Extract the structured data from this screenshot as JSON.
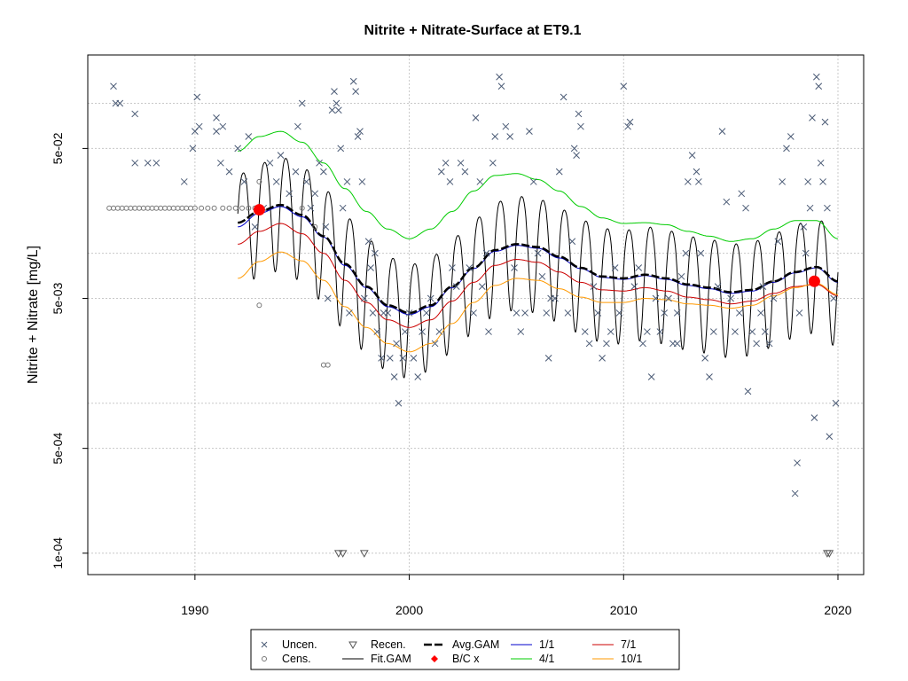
{
  "chart_data": {
    "type": "scatter",
    "title": "Nitrite + Nitrate-Surface at ET9.1",
    "xlabel": "",
    "ylabel": "Nitrite + Nitrate [mg/L]",
    "xlim": [
      1985,
      2021.2
    ],
    "ylim": [
      7.2e-05,
      0.21
    ],
    "y_scale": "log",
    "grid": true,
    "x_ticks": [
      1990,
      2000,
      2010,
      2020
    ],
    "x_tick_labels": [
      "1990",
      "2000",
      "2010",
      "2020"
    ],
    "y_ticks": [
      0.0001,
      0.0005,
      0.005,
      0.05
    ],
    "y_tick_labels": [
      "1e-04",
      "5e-04",
      "5e-03",
      "5e-02"
    ],
    "y_minor_grid": [
      0.001,
      0.01,
      0.1
    ],
    "legend_position": "bottom-outside",
    "legend": [
      {
        "label": "Uncen.",
        "symbol": "x",
        "color": "#4a5a75"
      },
      {
        "label": "Cens.",
        "symbol": "circle",
        "color": "#777777"
      },
      {
        "label": "Recen.",
        "symbol": "triangle-down",
        "color": "#555555"
      },
      {
        "label": "Fit.GAM",
        "symbol": "line",
        "color": "#000000"
      },
      {
        "label": "Avg.GAM",
        "symbol": "dashed-line",
        "color": "#000000"
      },
      {
        "label": "B/C x",
        "symbol": "diamond",
        "color": "#ff0000"
      },
      {
        "label": "1/1",
        "symbol": "line",
        "color": "#0000cc"
      },
      {
        "label": "4/1",
        "symbol": "line",
        "color": "#00cc00"
      },
      {
        "label": "7/1",
        "symbol": "line",
        "color": "#cc0000"
      },
      {
        "label": "10/1",
        "symbol": "line",
        "color": "#ff9900"
      }
    ],
    "uncensored": [
      [
        1986.2,
        0.13
      ],
      [
        1986.3,
        0.1
      ],
      [
        1986.5,
        0.1
      ],
      [
        1987.2,
        0.085
      ],
      [
        1987.2,
        0.04
      ],
      [
        1987.8,
        0.04
      ],
      [
        1988.2,
        0.04
      ],
      [
        1989.5,
        0.03
      ],
      [
        1989.9,
        0.05
      ],
      [
        1990.1,
        0.11
      ],
      [
        1990.0,
        0.065
      ],
      [
        1990.2,
        0.07
      ],
      [
        1991.0,
        0.065
      ],
      [
        1991.0,
        0.08
      ],
      [
        1991.2,
        0.04
      ],
      [
        1991.3,
        0.07
      ],
      [
        1991.6,
        0.035
      ],
      [
        1992.0,
        0.05
      ],
      [
        1992.3,
        0.03
      ],
      [
        1992.5,
        0.06
      ],
      [
        1992.8,
        0.015
      ],
      [
        1993.2,
        0.02
      ],
      [
        1993.5,
        0.04
      ],
      [
        1993.8,
        0.03
      ],
      [
        1994.0,
        0.045
      ],
      [
        1994.4,
        0.025
      ],
      [
        1994.7,
        0.035
      ],
      [
        1994.8,
        0.07
      ],
      [
        1995.0,
        0.1
      ],
      [
        1995.2,
        0.03
      ],
      [
        1995.4,
        0.02
      ],
      [
        1995.6,
        0.025
      ],
      [
        1995.8,
        0.04
      ],
      [
        1996.0,
        0.035
      ],
      [
        1996.1,
        0.015
      ],
      [
        1996.2,
        0.005
      ],
      [
        1996.4,
        0.09
      ],
      [
        1996.5,
        0.12
      ],
      [
        1996.6,
        0.1
      ],
      [
        1996.7,
        0.09
      ],
      [
        1996.8,
        0.05
      ],
      [
        1996.9,
        0.02
      ],
      [
        1997.1,
        0.03
      ],
      [
        1997.2,
        0.004
      ],
      [
        1997.4,
        0.14
      ],
      [
        1997.5,
        0.12
      ],
      [
        1997.6,
        0.06
      ],
      [
        1997.7,
        0.065
      ],
      [
        1997.8,
        0.03
      ],
      [
        1997.9,
        0.005
      ],
      [
        1998.1,
        0.012
      ],
      [
        1998.2,
        0.008
      ],
      [
        1998.3,
        0.004
      ],
      [
        1998.4,
        0.01
      ],
      [
        1998.5,
        0.003
      ],
      [
        1998.7,
        0.002
      ],
      [
        1998.8,
        0.004
      ],
      [
        1999.0,
        0.004
      ],
      [
        1999.1,
        0.002
      ],
      [
        1999.3,
        0.0015
      ],
      [
        1999.4,
        0.0025
      ],
      [
        1999.5,
        0.001
      ],
      [
        1999.7,
        0.002
      ],
      [
        1999.8,
        0.003
      ],
      [
        2000.0,
        0.004
      ],
      [
        2000.2,
        0.002
      ],
      [
        2000.4,
        0.0015
      ],
      [
        2000.6,
        0.003
      ],
      [
        2000.8,
        0.004
      ],
      [
        2001.0,
        0.005
      ],
      [
        2001.2,
        0.0025
      ],
      [
        2001.4,
        0.003
      ],
      [
        2001.5,
        0.035
      ],
      [
        2001.7,
        0.04
      ],
      [
        2001.9,
        0.03
      ],
      [
        2002.0,
        0.008
      ],
      [
        2002.2,
        0.006
      ],
      [
        2002.4,
        0.04
      ],
      [
        2002.6,
        0.035
      ],
      [
        2002.8,
        0.008
      ],
      [
        2003.0,
        0.004
      ],
      [
        2003.1,
        0.08
      ],
      [
        2003.3,
        0.03
      ],
      [
        2003.4,
        0.006
      ],
      [
        2003.6,
        0.01
      ],
      [
        2003.9,
        0.04
      ],
      [
        2004.0,
        0.06
      ],
      [
        2004.2,
        0.15
      ],
      [
        2004.3,
        0.13
      ],
      [
        2004.5,
        0.07
      ],
      [
        2004.7,
        0.06
      ],
      [
        2004.9,
        0.008
      ],
      [
        2005.0,
        0.004
      ],
      [
        2005.2,
        0.003
      ],
      [
        2005.4,
        0.004
      ],
      [
        2005.6,
        0.065
      ],
      [
        2005.8,
        0.03
      ],
      [
        2006.0,
        0.01
      ],
      [
        2006.2,
        0.007
      ],
      [
        2006.4,
        0.004
      ],
      [
        2006.6,
        0.005
      ],
      [
        2006.8,
        0.005
      ],
      [
        2007.0,
        0.035
      ],
      [
        2007.2,
        0.11
      ],
      [
        2007.4,
        0.004
      ],
      [
        2007.6,
        0.012
      ],
      [
        2007.7,
        0.05
      ],
      [
        2007.8,
        0.045
      ],
      [
        2007.9,
        0.085
      ],
      [
        2008.0,
        0.07
      ],
      [
        2008.2,
        0.003
      ],
      [
        2008.4,
        0.0025
      ],
      [
        2008.6,
        0.006
      ],
      [
        2008.8,
        0.004
      ],
      [
        2009.0,
        0.002
      ],
      [
        2009.2,
        0.0025
      ],
      [
        2009.4,
        0.003
      ],
      [
        2009.6,
        0.008
      ],
      [
        2009.8,
        0.004
      ],
      [
        2010.0,
        0.13
      ],
      [
        2010.2,
        0.07
      ],
      [
        2010.3,
        0.075
      ],
      [
        2010.5,
        0.006
      ],
      [
        2010.7,
        0.008
      ],
      [
        2010.9,
        0.0025
      ],
      [
        2011.1,
        0.003
      ],
      [
        2011.3,
        0.0015
      ],
      [
        2011.5,
        0.005
      ],
      [
        2011.7,
        0.003
      ],
      [
        2011.9,
        0.004
      ],
      [
        2012.1,
        0.005
      ],
      [
        2012.3,
        0.0025
      ],
      [
        2012.5,
        0.004
      ],
      [
        2012.7,
        0.007
      ],
      [
        2012.9,
        0.01
      ],
      [
        2013.0,
        0.03
      ],
      [
        2013.2,
        0.045
      ],
      [
        2013.4,
        0.035
      ],
      [
        2013.5,
        0.03
      ],
      [
        2013.6,
        0.01
      ],
      [
        2013.8,
        0.002
      ],
      [
        2014.0,
        0.0015
      ],
      [
        2014.2,
        0.003
      ],
      [
        2014.4,
        0.006
      ],
      [
        2014.6,
        0.065
      ],
      [
        2014.8,
        0.022
      ],
      [
        2015.0,
        0.005
      ],
      [
        2015.2,
        0.003
      ],
      [
        2015.4,
        0.004
      ],
      [
        2015.5,
        0.025
      ],
      [
        2015.7,
        0.02
      ],
      [
        2015.8,
        0.0012
      ],
      [
        2016.0,
        0.003
      ],
      [
        2016.2,
        0.0025
      ],
      [
        2016.4,
        0.004
      ],
      [
        2016.6,
        0.003
      ],
      [
        2016.8,
        0.0025
      ],
      [
        2017.0,
        0.005
      ],
      [
        2017.2,
        0.012
      ],
      [
        2017.4,
        0.03
      ],
      [
        2017.6,
        0.05
      ],
      [
        2017.8,
        0.06
      ],
      [
        2018.0,
        0.00025
      ],
      [
        2018.2,
        0.004
      ],
      [
        2018.4,
        0.015
      ],
      [
        2018.6,
        0.03
      ],
      [
        2018.7,
        0.02
      ],
      [
        2018.8,
        0.08
      ],
      [
        2019.0,
        0.15
      ],
      [
        2019.1,
        0.13
      ],
      [
        2019.2,
        0.04
      ],
      [
        2019.3,
        0.03
      ],
      [
        2019.4,
        0.075
      ],
      [
        2019.5,
        0.02
      ],
      [
        2019.6,
        0.0006
      ],
      [
        2019.8,
        0.005
      ],
      [
        2019.9,
        0.001
      ],
      [
        2018.9,
        0.0008
      ],
      [
        2018.1,
        0.0004
      ],
      [
        2018.5,
        0.01
      ],
      [
        2016.5,
        0.006
      ],
      [
        2012.5,
        0.0025
      ],
      [
        2006.5,
        0.002
      ],
      [
        2003.7,
        0.003
      ]
    ],
    "censored": [
      [
        1986.0,
        0.02
      ],
      [
        1986.2,
        0.02
      ],
      [
        1986.4,
        0.02
      ],
      [
        1986.6,
        0.02
      ],
      [
        1986.8,
        0.02
      ],
      [
        1987.0,
        0.02
      ],
      [
        1987.2,
        0.02
      ],
      [
        1987.4,
        0.02
      ],
      [
        1987.6,
        0.02
      ],
      [
        1987.8,
        0.02
      ],
      [
        1988.0,
        0.02
      ],
      [
        1988.2,
        0.02
      ],
      [
        1988.4,
        0.02
      ],
      [
        1988.6,
        0.02
      ],
      [
        1988.8,
        0.02
      ],
      [
        1989.0,
        0.02
      ],
      [
        1989.2,
        0.02
      ],
      [
        1989.4,
        0.02
      ],
      [
        1989.6,
        0.02
      ],
      [
        1989.8,
        0.02
      ],
      [
        1990.0,
        0.02
      ],
      [
        1990.3,
        0.02
      ],
      [
        1990.6,
        0.02
      ],
      [
        1990.9,
        0.02
      ],
      [
        1991.3,
        0.02
      ],
      [
        1991.6,
        0.02
      ],
      [
        1991.9,
        0.02
      ],
      [
        1992.2,
        0.02
      ],
      [
        1992.5,
        0.02
      ],
      [
        1992.8,
        0.02
      ],
      [
        1993.0,
        0.03
      ],
      [
        1993.0,
        0.0045
      ],
      [
        1995.0,
        0.02
      ],
      [
        1995.6,
        0.015
      ],
      [
        1996.0,
        0.0018
      ],
      [
        1996.2,
        0.0018
      ]
    ],
    "recensored": [
      [
        1996.7,
        0.0001
      ],
      [
        1996.9,
        0.0001
      ],
      [
        1997.9,
        0.0001
      ],
      [
        2019.5,
        0.0001
      ],
      [
        2019.6,
        0.0001
      ]
    ],
    "bc_points": [
      [
        1993.0,
        0.0195
      ],
      [
        2018.9,
        0.0065
      ]
    ],
    "series": [
      {
        "name": "Avg.GAM",
        "x": [
          1992.0,
          1993.0,
          1994.0,
          1995.0,
          1996.0,
          1997.0,
          1998.0,
          1999.0,
          2000.0,
          2001.0,
          2002.0,
          2003.0,
          2004.0,
          2005.0,
          2006.0,
          2007.0,
          2008.0,
          2009.0,
          2010.0,
          2011.0,
          2012.0,
          2013.0,
          2014.0,
          2015.0,
          2016.0,
          2017.0,
          2018.0,
          2019.0,
          2020.0
        ],
        "y": [
          0.016,
          0.019,
          0.021,
          0.018,
          0.013,
          0.0085,
          0.006,
          0.0045,
          0.004,
          0.0045,
          0.006,
          0.008,
          0.0105,
          0.0115,
          0.011,
          0.0095,
          0.008,
          0.007,
          0.0068,
          0.0072,
          0.0068,
          0.0062,
          0.0059,
          0.0055,
          0.0057,
          0.0065,
          0.0075,
          0.0081,
          0.0065
        ]
      },
      {
        "name": "1/1",
        "x": [
          1992.0,
          1993.0,
          1994.0,
          1995.0,
          1996.0,
          1997.0,
          1998.0,
          1999.0,
          2000.0,
          2001.0,
          2002.0,
          2003.0,
          2004.0,
          2005.0,
          2006.0,
          2007.0,
          2008.0,
          2009.0,
          2010.0,
          2011.0,
          2012.0,
          2013.0,
          2014.0,
          2015.0,
          2016.0,
          2017.0,
          2018.0,
          2019.0,
          2020.0
        ],
        "y": [
          0.015,
          0.0185,
          0.0205,
          0.0175,
          0.0128,
          0.0083,
          0.0059,
          0.0044,
          0.0039,
          0.0044,
          0.0059,
          0.0079,
          0.0103,
          0.0113,
          0.0108,
          0.0093,
          0.0079,
          0.0069,
          0.0067,
          0.0071,
          0.0067,
          0.0061,
          0.0058,
          0.0054,
          0.0056,
          0.0064,
          0.0074,
          0.008,
          0.0064
        ]
      },
      {
        "name": "4/1",
        "x": [
          1992.0,
          1993.0,
          1994.0,
          1995.0,
          1996.0,
          1997.0,
          1998.0,
          1999.0,
          2000.0,
          2001.0,
          2002.0,
          2003.0,
          2004.0,
          2005.0,
          2006.0,
          2007.0,
          2008.0,
          2009.0,
          2010.0,
          2011.0,
          2012.0,
          2013.0,
          2014.0,
          2015.0,
          2016.0,
          2017.0,
          2018.0,
          2019.0,
          2020.0
        ],
        "y": [
          0.048,
          0.06,
          0.065,
          0.055,
          0.04,
          0.027,
          0.019,
          0.0145,
          0.0125,
          0.0145,
          0.019,
          0.026,
          0.033,
          0.034,
          0.031,
          0.026,
          0.0205,
          0.0172,
          0.0158,
          0.016,
          0.0155,
          0.014,
          0.013,
          0.012,
          0.0125,
          0.0145,
          0.0165,
          0.0165,
          0.0125
        ]
      },
      {
        "name": "7/1",
        "x": [
          1992.0,
          1993.0,
          1994.0,
          1995.0,
          1996.0,
          1997.0,
          1998.0,
          1999.0,
          2000.0,
          2001.0,
          2002.0,
          2003.0,
          2004.0,
          2005.0,
          2006.0,
          2007.0,
          2008.0,
          2009.0,
          2010.0,
          2011.0,
          2012.0,
          2013.0,
          2014.0,
          2015.0,
          2016.0,
          2017.0,
          2018.0,
          2019.0,
          2020.0
        ],
        "y": [
          0.0115,
          0.014,
          0.0158,
          0.0135,
          0.01,
          0.0066,
          0.0047,
          0.0036,
          0.0032,
          0.0036,
          0.0048,
          0.0064,
          0.0083,
          0.0091,
          0.0087,
          0.0075,
          0.0064,
          0.0057,
          0.0056,
          0.0059,
          0.0056,
          0.0051,
          0.0049,
          0.0046,
          0.0048,
          0.0054,
          0.006,
          0.0062,
          0.0052
        ]
      },
      {
        "name": "10/1",
        "x": [
          1992.0,
          1993.0,
          1994.0,
          1995.0,
          1996.0,
          1997.0,
          1998.0,
          1999.0,
          2000.0,
          2001.0,
          2002.0,
          2003.0,
          2004.0,
          2005.0,
          2006.0,
          2007.0,
          2008.0,
          2009.0,
          2010.0,
          2011.0,
          2012.0,
          2013.0,
          2014.0,
          2015.0,
          2016.0,
          2017.0,
          2018.0,
          2019.0,
          2020.0
        ],
        "y": [
          0.0068,
          0.0088,
          0.0102,
          0.0089,
          0.0066,
          0.0044,
          0.0032,
          0.0025,
          0.0022,
          0.0025,
          0.0034,
          0.0047,
          0.0061,
          0.0068,
          0.0066,
          0.0058,
          0.0051,
          0.0047,
          0.0047,
          0.005,
          0.0049,
          0.0046,
          0.0045,
          0.0043,
          0.0045,
          0.0052,
          0.0059,
          0.0063,
          0.0053
        ]
      }
    ],
    "fit_gam": {
      "name": "Fit.GAM",
      "x_start": 1992.0,
      "x_end": 2020.0,
      "seasonal_amplitude_log10": 0.38,
      "baseline_series": "Avg.GAM"
    }
  }
}
